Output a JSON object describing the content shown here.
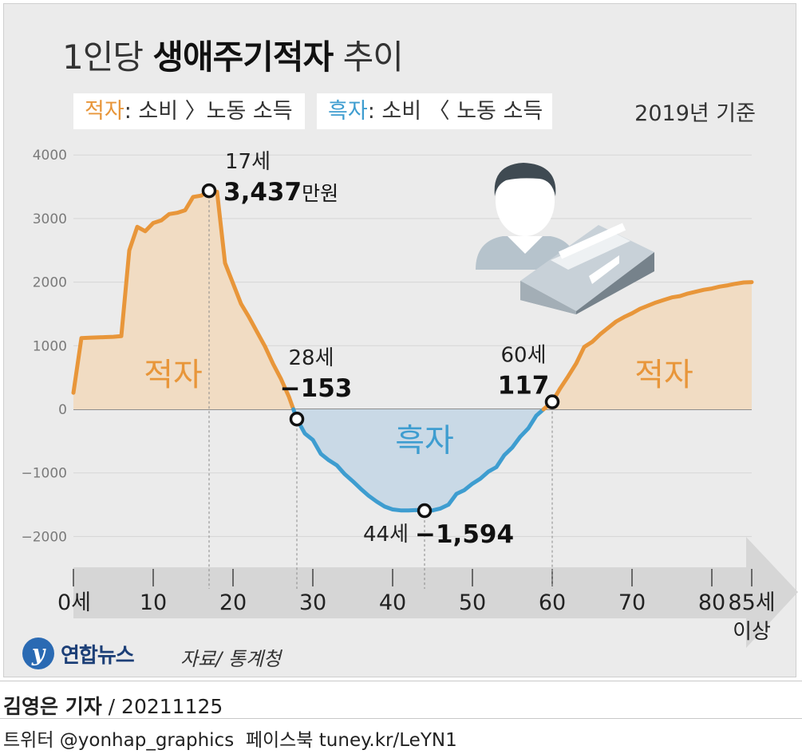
{
  "header": {
    "title_prefix": "1인당",
    "title_bold": "생애주기적자",
    "title_suffix": "추이"
  },
  "legend": {
    "deficit_term": "적자",
    "deficit_desc": ": 소비 〉노동 소득",
    "surplus_term": "흑자",
    "surplus_desc": ": 소비 〈 노동 소득"
  },
  "basis_note": "2019년 기준",
  "colors": {
    "deficit": "#e8963a",
    "deficit_fill": "#f1dcc3",
    "surplus": "#3e9dd0",
    "surplus_fill": "#c9d9e6",
    "panel_bg": "#ebebeb"
  },
  "chart_data": {
    "type": "area",
    "xlabel": "",
    "ylabel": "",
    "xlim": [
      0,
      85
    ],
    "ylim": [
      -2500,
      4000
    ],
    "y_ticks": [
      4000,
      3000,
      2000,
      1000,
      0,
      -1000,
      -2000
    ],
    "y_tick_labels": [
      "4000",
      "3000",
      "2000",
      "1000",
      "0",
      "−1000",
      "−2000"
    ],
    "x_ticks": [
      0,
      10,
      20,
      30,
      40,
      50,
      60,
      70,
      80,
      85
    ],
    "x_tick_labels": [
      "0세",
      "10",
      "20",
      "30",
      "40",
      "50",
      "60",
      "70",
      "80",
      "85세"
    ],
    "x_last_sub": "이상",
    "series": [
      {
        "values": [
          {
            "x": 0,
            "y": 260
          },
          {
            "x": 1,
            "y": 1120
          },
          {
            "x": 2,
            "y": 1125
          },
          {
            "x": 3,
            "y": 1130
          },
          {
            "x": 4,
            "y": 1135
          },
          {
            "x": 5,
            "y": 1140
          },
          {
            "x": 6,
            "y": 1150
          },
          {
            "x": 7,
            "y": 2500
          },
          {
            "x": 8,
            "y": 2870
          },
          {
            "x": 9,
            "y": 2800
          },
          {
            "x": 10,
            "y": 2930
          },
          {
            "x": 11,
            "y": 2970
          },
          {
            "x": 12,
            "y": 3070
          },
          {
            "x": 13,
            "y": 3090
          },
          {
            "x": 14,
            "y": 3130
          },
          {
            "x": 15,
            "y": 3340
          },
          {
            "x": 16,
            "y": 3360
          },
          {
            "x": 17,
            "y": 3437
          },
          {
            "x": 18,
            "y": 3420
          },
          {
            "x": 19,
            "y": 2300
          },
          {
            "x": 20,
            "y": 1980
          },
          {
            "x": 21,
            "y": 1660
          },
          {
            "x": 22,
            "y": 1450
          },
          {
            "x": 23,
            "y": 1220
          },
          {
            "x": 24,
            "y": 990
          },
          {
            "x": 25,
            "y": 720
          },
          {
            "x": 26,
            "y": 480
          },
          {
            "x": 27,
            "y": 200
          },
          {
            "x": 28,
            "y": -153
          },
          {
            "x": 29,
            "y": -380
          },
          {
            "x": 30,
            "y": -480
          },
          {
            "x": 31,
            "y": -700
          },
          {
            "x": 32,
            "y": -800
          },
          {
            "x": 33,
            "y": -880
          },
          {
            "x": 34,
            "y": -1020
          },
          {
            "x": 35,
            "y": -1130
          },
          {
            "x": 36,
            "y": -1250
          },
          {
            "x": 37,
            "y": -1360
          },
          {
            "x": 38,
            "y": -1450
          },
          {
            "x": 39,
            "y": -1530
          },
          {
            "x": 40,
            "y": -1575
          },
          {
            "x": 41,
            "y": -1590
          },
          {
            "x": 42,
            "y": -1590
          },
          {
            "x": 43,
            "y": -1585
          },
          {
            "x": 44,
            "y": -1594
          },
          {
            "x": 45,
            "y": -1590
          },
          {
            "x": 46,
            "y": -1560
          },
          {
            "x": 47,
            "y": -1500
          },
          {
            "x": 48,
            "y": -1330
          },
          {
            "x": 49,
            "y": -1270
          },
          {
            "x": 50,
            "y": -1170
          },
          {
            "x": 51,
            "y": -1090
          },
          {
            "x": 52,
            "y": -980
          },
          {
            "x": 53,
            "y": -910
          },
          {
            "x": 54,
            "y": -720
          },
          {
            "x": 55,
            "y": -600
          },
          {
            "x": 56,
            "y": -430
          },
          {
            "x": 57,
            "y": -300
          },
          {
            "x": 58,
            "y": -100
          },
          {
            "x": 59,
            "y": 10
          },
          {
            "x": 60,
            "y": 117
          },
          {
            "x": 61,
            "y": 330
          },
          {
            "x": 62,
            "y": 520
          },
          {
            "x": 63,
            "y": 720
          },
          {
            "x": 64,
            "y": 980
          },
          {
            "x": 65,
            "y": 1060
          },
          {
            "x": 66,
            "y": 1180
          },
          {
            "x": 67,
            "y": 1280
          },
          {
            "x": 68,
            "y": 1380
          },
          {
            "x": 69,
            "y": 1450
          },
          {
            "x": 70,
            "y": 1510
          },
          {
            "x": 71,
            "y": 1580
          },
          {
            "x": 72,
            "y": 1630
          },
          {
            "x": 73,
            "y": 1680
          },
          {
            "x": 74,
            "y": 1720
          },
          {
            "x": 75,
            "y": 1760
          },
          {
            "x": 76,
            "y": 1780
          },
          {
            "x": 77,
            "y": 1820
          },
          {
            "x": 78,
            "y": 1850
          },
          {
            "x": 79,
            "y": 1880
          },
          {
            "x": 80,
            "y": 1900
          },
          {
            "x": 81,
            "y": 1930
          },
          {
            "x": 82,
            "y": 1950
          },
          {
            "x": 83,
            "y": 1975
          },
          {
            "x": 84,
            "y": 1995
          },
          {
            "x": 85,
            "y": 2000
          }
        ]
      }
    ],
    "region_labels": [
      {
        "text": "적자",
        "x": 12.5,
        "y": 550,
        "kind": "deficit"
      },
      {
        "text": "흑자",
        "x": 44,
        "y": -480,
        "kind": "surplus"
      },
      {
        "text": "적자",
        "x": 74,
        "y": 550,
        "kind": "deficit"
      }
    ],
    "annotations": [
      {
        "x": 17,
        "y": 3437,
        "age_label": "17세",
        "value_label": "3,437",
        "unit": "만원"
      },
      {
        "x": 28,
        "y": -153,
        "age_label": "28세",
        "value_label": "−153",
        "unit": ""
      },
      {
        "x": 44,
        "y": -1594,
        "age_label": "44세",
        "value_label": "−1,594",
        "unit": ""
      },
      {
        "x": 60,
        "y": 117,
        "age_label": "60세",
        "value_label": "117",
        "unit": ""
      }
    ]
  },
  "source": "자료/ 통계청",
  "logo": {
    "mark": "y",
    "name": "연합뉴스"
  },
  "credit": {
    "reporter": "김영은 기자",
    "date": " / 20211125"
  },
  "social": {
    "twitter_label": "트위터",
    "twitter_handle": "@yonhap_graphics",
    "facebook_label": "페이스북",
    "facebook_url": "tuney.kr/LeYN1"
  }
}
